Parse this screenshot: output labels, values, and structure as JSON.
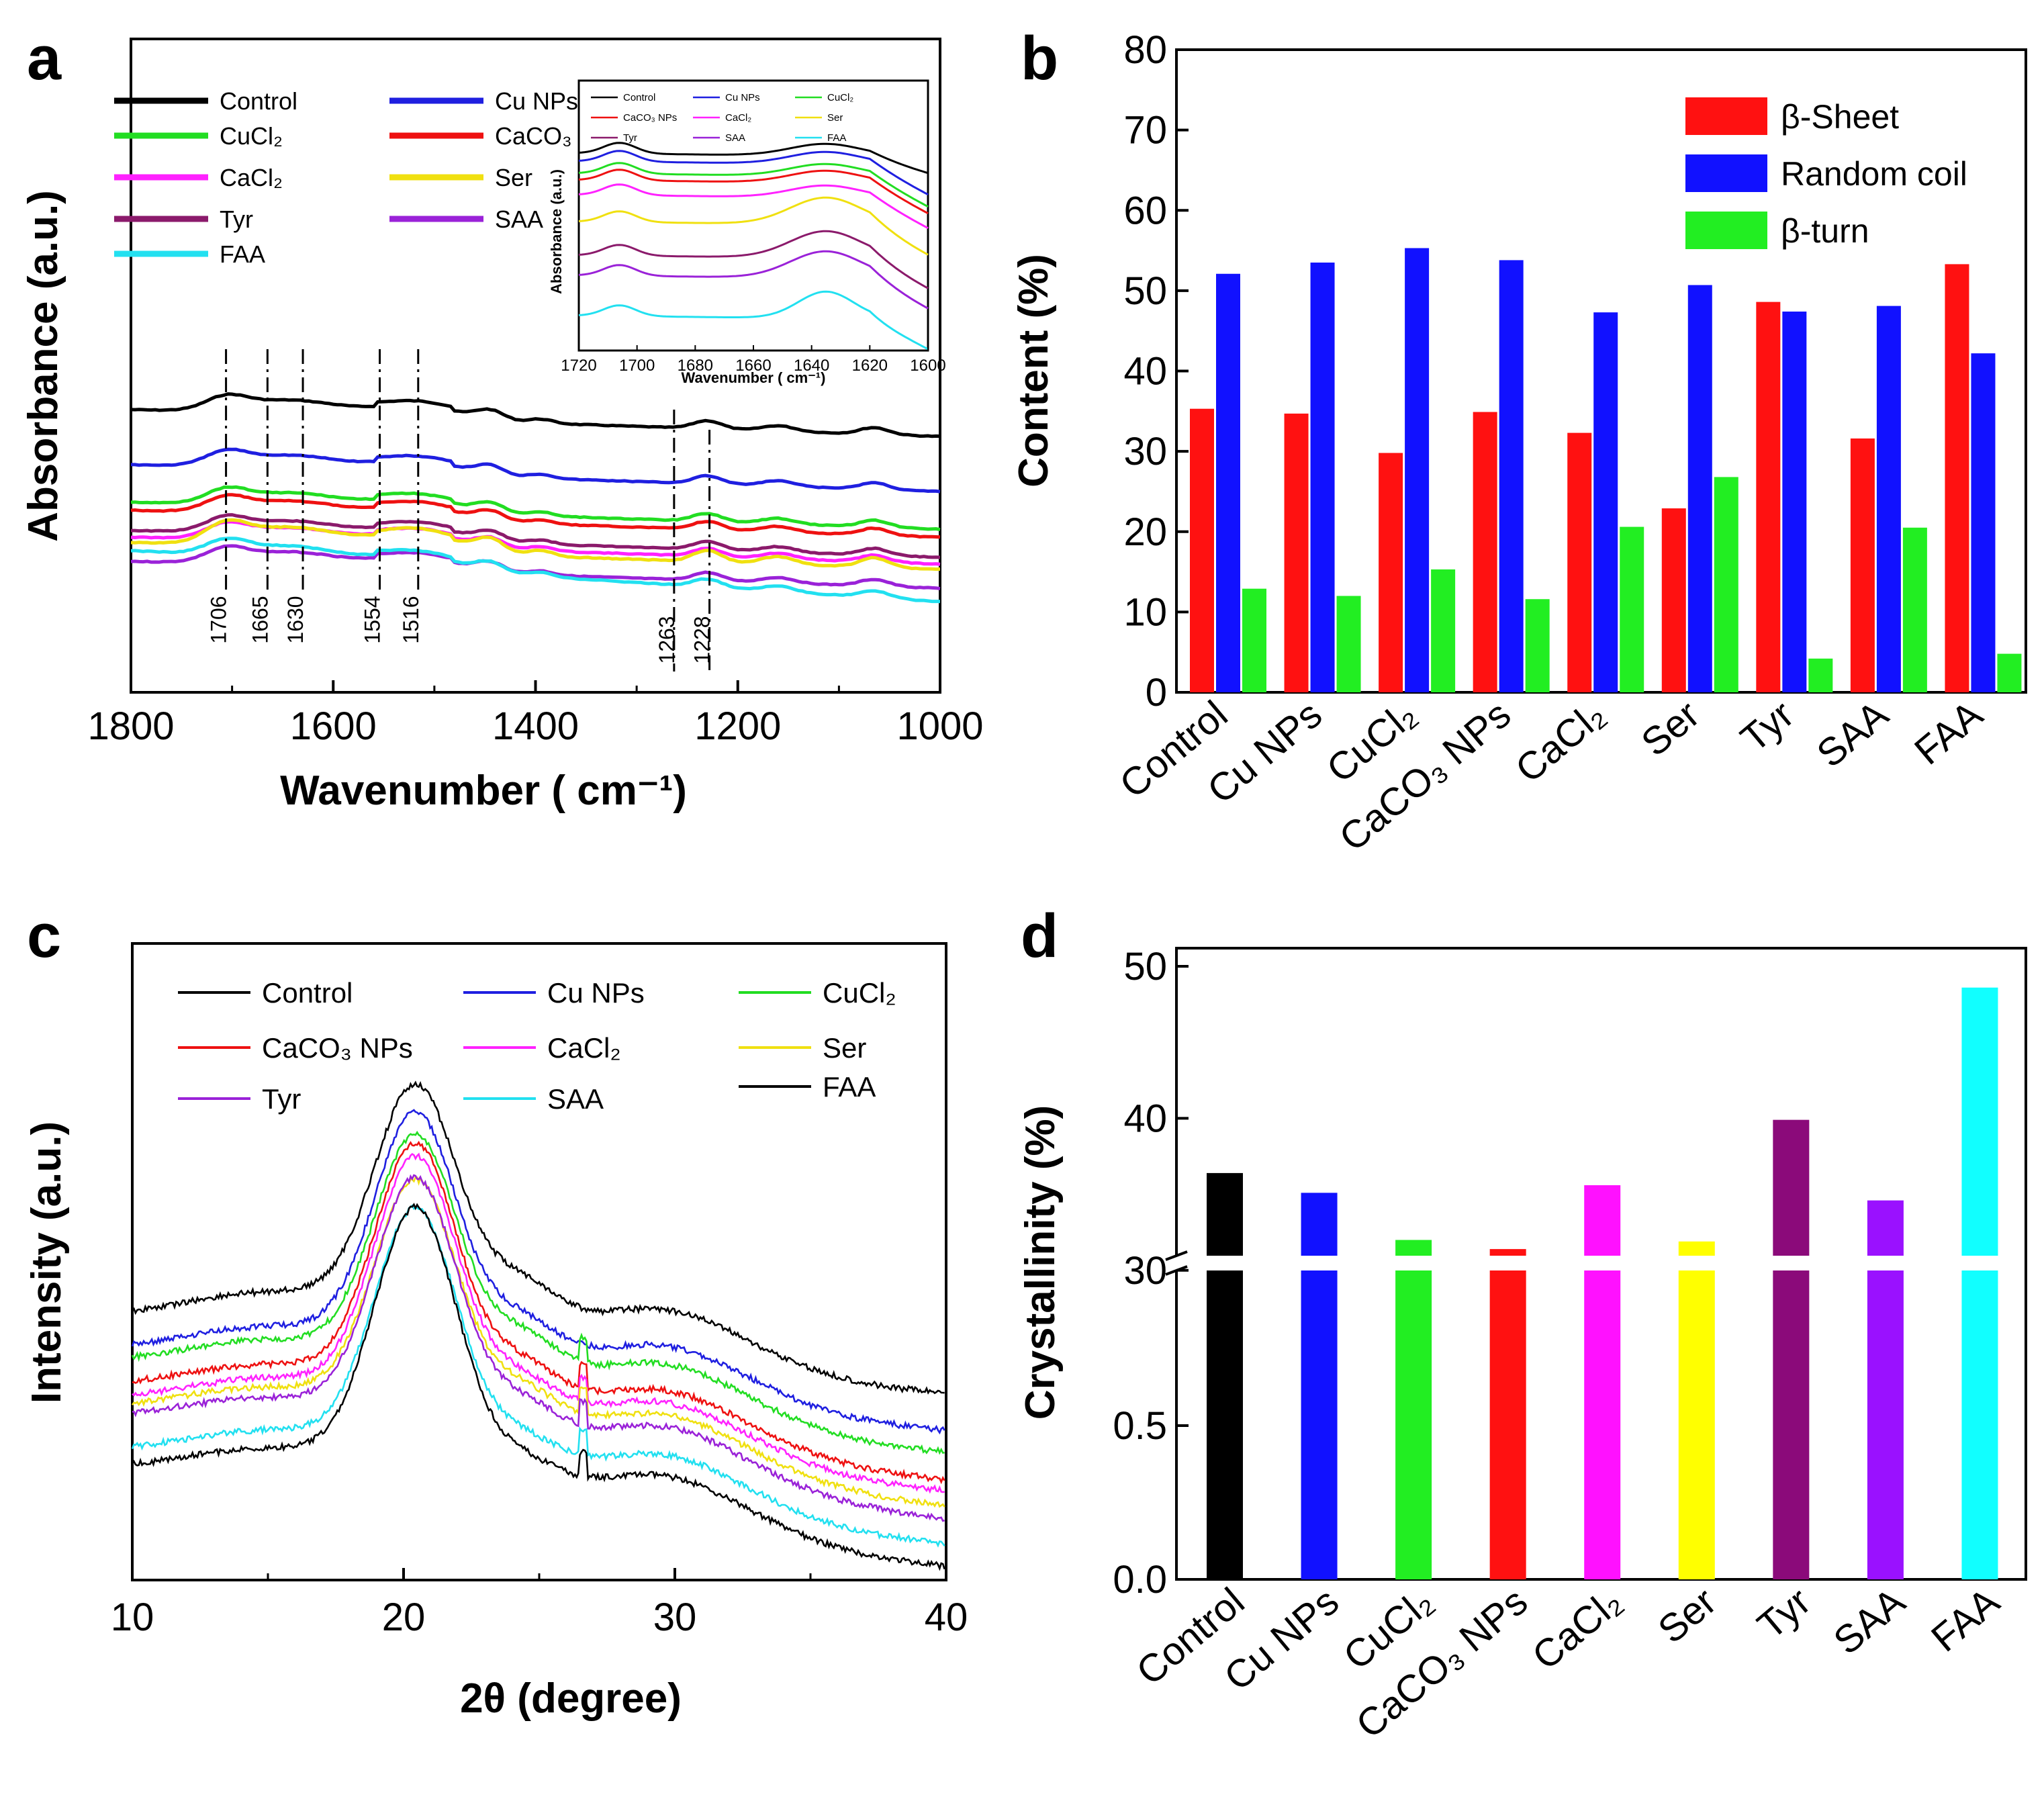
{
  "panels": {
    "a": "a",
    "b": "b",
    "c": "c",
    "d": "d"
  },
  "chart_data": [
    {
      "id": "a",
      "type": "line",
      "title": "",
      "xlabel": "Wavenumber ( cm⁻¹)",
      "ylabel": "Absorbance (a.u.)",
      "xlim": [
        1800,
        1000
      ],
      "xticks": [
        "1800",
        "1600",
        "1400",
        "1200",
        "1000"
      ],
      "series": [
        {
          "name": "Control",
          "color": "#000000"
        },
        {
          "name": "Cu NPs",
          "color": "#1f1fe0"
        },
        {
          "name": "CuCl₂",
          "color": "#22dd22"
        },
        {
          "name": "CaCO₃ NPs",
          "color": "#ee1111"
        },
        {
          "name": "CaCl₂",
          "color": "#ff22ff"
        },
        {
          "name": "Ser",
          "color": "#f0e010"
        },
        {
          "name": "Tyr",
          "color": "#8b1a6b"
        },
        {
          "name": "SAA",
          "color": "#9a22d8"
        },
        {
          "name": "FAA",
          "color": "#22e0f0"
        }
      ],
      "peaks": [
        "1706",
        "1665",
        "1630",
        "1554",
        "1516",
        "1263",
        "1228"
      ],
      "inset": {
        "xlabel": "Wavenumber ( cm⁻¹)",
        "ylabel": "Absorbance (a.u.)",
        "xlim": [
          1720,
          1600
        ],
        "xticks": [
          "1720",
          "1700",
          "1680",
          "1660",
          "1640",
          "1620",
          "1600"
        ]
      }
    },
    {
      "id": "b",
      "type": "bar",
      "xlabel": "",
      "ylabel": "Content (%)",
      "ylim": [
        0,
        80
      ],
      "yticks": [
        "0",
        "10",
        "20",
        "30",
        "40",
        "50",
        "60",
        "70",
        "80"
      ],
      "categories": [
        "Control",
        "Cu NPs",
        "CuCl₂",
        "CaCO₃ NPs",
        "CaCl₂",
        "Ser",
        "Tyr",
        "SAA",
        "FAA"
      ],
      "series": [
        {
          "name": "β-Sheet",
          "color": "#ff1111",
          "values": [
            35.3,
            34.7,
            29.8,
            34.9,
            32.3,
            22.9,
            48.6,
            31.6,
            53.3
          ]
        },
        {
          "name": "Random coil",
          "color": "#1111ff",
          "values": [
            52.1,
            53.5,
            55.3,
            53.8,
            47.3,
            50.7,
            47.4,
            48.1,
            42.2
          ]
        },
        {
          "name": "β-turn",
          "color": "#22ee22",
          "values": [
            12.9,
            12.0,
            15.3,
            11.6,
            20.6,
            26.8,
            4.2,
            20.5,
            4.8
          ]
        }
      ]
    },
    {
      "id": "c",
      "type": "line",
      "xlabel": "2θ (degree)",
      "ylabel": "Intensity (a.u.)",
      "xlim": [
        10,
        40
      ],
      "xticks": [
        "10",
        "20",
        "30",
        "40"
      ],
      "series": [
        {
          "name": "Control",
          "color": "#000000"
        },
        {
          "name": "Cu NPs",
          "color": "#1f1fe0"
        },
        {
          "name": "CuCl₂",
          "color": "#22dd22"
        },
        {
          "name": "CaCO₃ NPs",
          "color": "#ee1111"
        },
        {
          "name": "CaCl₂",
          "color": "#ff22ff"
        },
        {
          "name": "Ser",
          "color": "#f0e010"
        },
        {
          "name": "Tyr",
          "color": "#9a22d8"
        },
        {
          "name": "SAA",
          "color": "#22e0f0"
        },
        {
          "name": "FAA",
          "color": "#000000"
        }
      ]
    },
    {
      "id": "d",
      "type": "bar",
      "xlabel": "",
      "ylabel": "Crystallinity (%)",
      "yticks_lower": [
        "0.0",
        "0.5"
      ],
      "yticks_upper": [
        "30",
        "40",
        "50"
      ],
      "categories": [
        "Control",
        "Cu NPs",
        "CuCl₂",
        "CaCO₃ NPs",
        "CaCl₂",
        "Ser",
        "Tyr",
        "SAA",
        "FAA"
      ],
      "values": [
        36.4,
        35.1,
        32.0,
        31.4,
        35.6,
        31.9,
        39.9,
        34.6,
        48.6
      ],
      "colors": [
        "#000000",
        "#1111ff",
        "#22ee22",
        "#ff1111",
        "#ff11ff",
        "#ffff00",
        "#8b0a7a",
        "#9a11ff",
        "#11ffff"
      ]
    }
  ]
}
